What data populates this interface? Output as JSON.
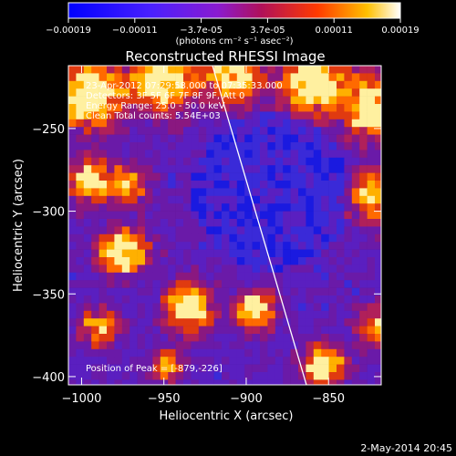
{
  "chart_data": {
    "type": "heatmap",
    "title": "Reconstructed RHESSI Image",
    "xlabel": "Heliocentric X (arcsec)",
    "ylabel": "Heliocentric Y (arcsec)",
    "xlim": [
      -1008,
      -818
    ],
    "ylim": [
      -405,
      -212
    ],
    "x_ticks": [
      -1000,
      -950,
      -900,
      -850
    ],
    "y_ticks": [
      -250,
      -300,
      -350,
      -400
    ],
    "colorbar": {
      "range": [
        -0.00019,
        0.00019
      ],
      "ticks": [
        "-0.00019",
        "-0.00011",
        "-3.7e-05",
        "3.7e-05",
        "0.00011",
        "0.00019"
      ],
      "unit_label": "(photons cm⁻² s⁻¹ asec⁻²)"
    },
    "annotations": [
      "23-Apr-2012 07:29:58.000 to 07:35:33.000",
      "Detectors: 3F 5F 6F 7F 8F 9F, Att 0",
      "Energy Range: 25.0 - 50.0 keV",
      "Clean     Total counts: 5.54E+03"
    ],
    "peak_label": "Position of Peak = [-879,-226]",
    "limb": true
  },
  "footer": {
    "date": "2-May-2014 20:45"
  }
}
